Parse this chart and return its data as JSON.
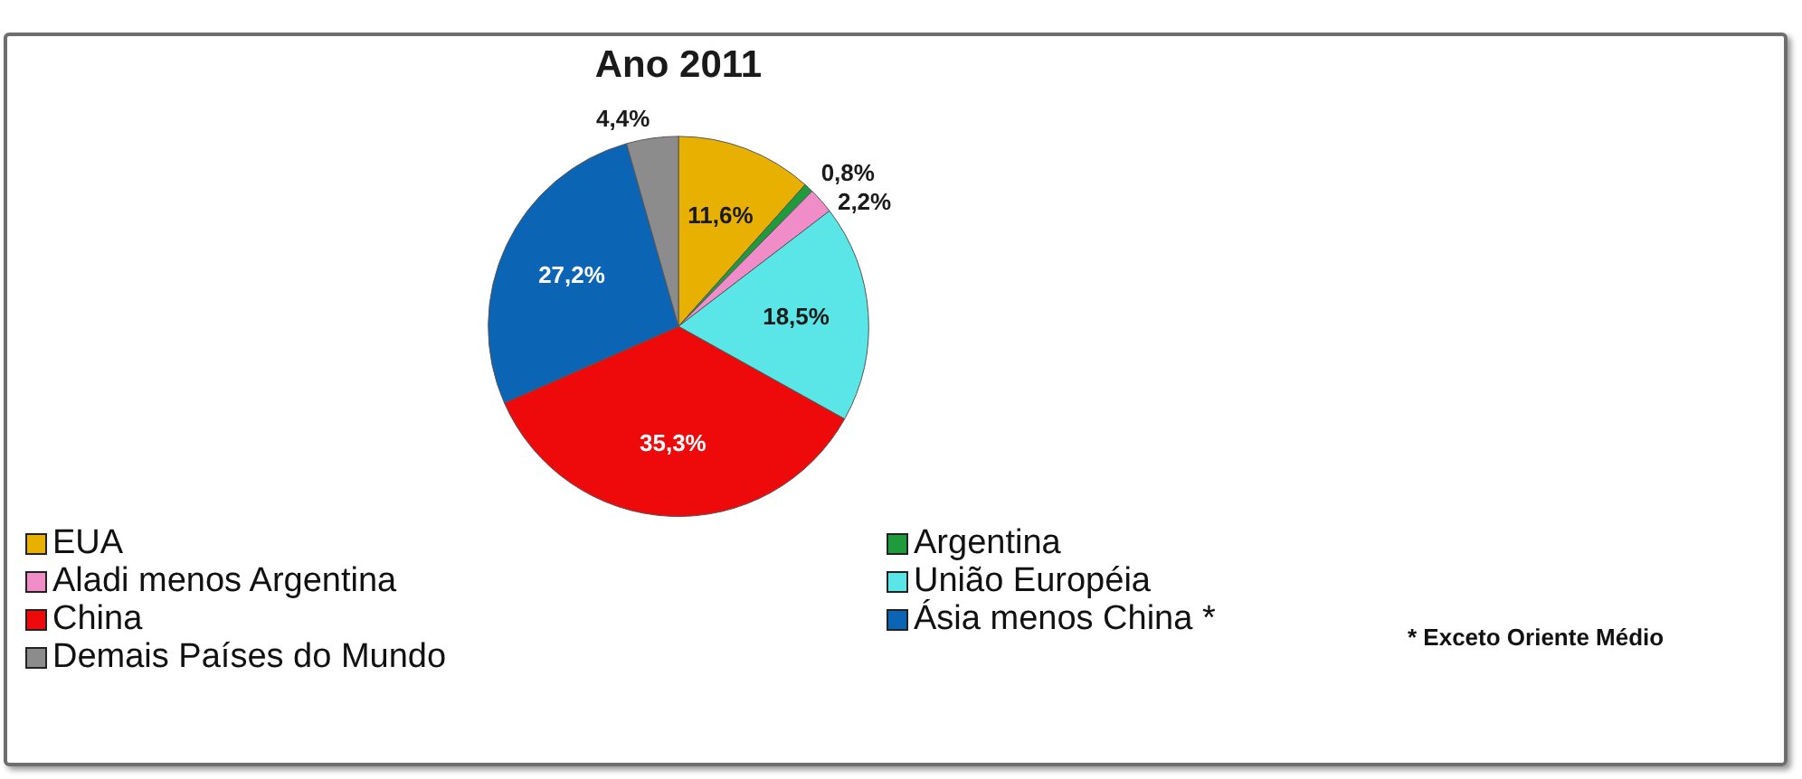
{
  "chart_data": {
    "type": "pie",
    "title": "Ano 2011",
    "categories": [
      "EUA",
      "Argentina",
      "Aladi menos Argentina",
      "União Européia",
      "China",
      "Ásia menos China *",
      "Demais Países do Mundo"
    ],
    "values": [
      11.6,
      0.8,
      2.2,
      18.5,
      35.3,
      27.2,
      4.4
    ],
    "colors": [
      "#e8b000",
      "#1f9a3c",
      "#f08cc8",
      "#5ae6e6",
      "#ee0a0a",
      "#0c64b4",
      "#8c8c8c"
    ],
    "value_labels": [
      "11,6%",
      "0,8%",
      "2,2%",
      "18,5%",
      "35,3%",
      "27,2%",
      "4,4%"
    ],
    "legend": "bottom",
    "annotations": [
      "* Exceto Oriente Médio"
    ]
  }
}
